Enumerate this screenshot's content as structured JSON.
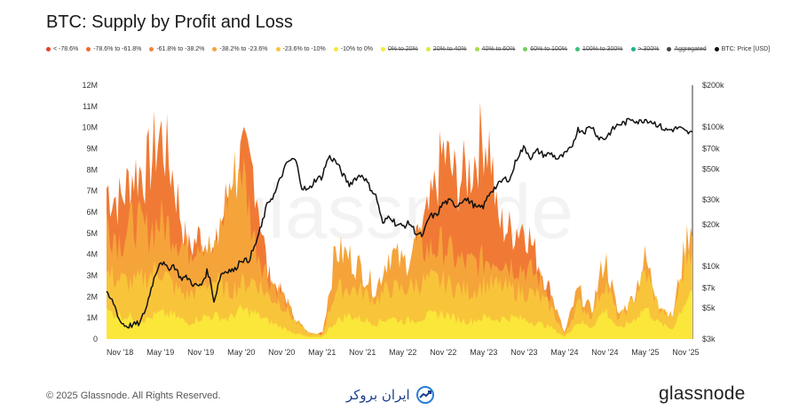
{
  "chart_data": {
    "type": "area",
    "title": "BTC: Supply by Profit and Loss",
    "watermark": "glassnode",
    "legend": [
      {
        "label": "< -78.6%",
        "color": "#e8402a",
        "strike": false
      },
      {
        "label": "-78.6% to -61.8%",
        "color": "#ee6a33",
        "strike": false
      },
      {
        "label": "-61.8% to -38.2%",
        "color": "#f2853a",
        "strike": false
      },
      {
        "label": "-38.2% to -23.6%",
        "color": "#f5a43a",
        "strike": false
      },
      {
        "label": "-23.6% to -10%",
        "color": "#f8c53a",
        "strike": false
      },
      {
        "label": "-10% to 0%",
        "color": "#fbe63a",
        "strike": false
      },
      {
        "label": "0% to 20%",
        "color": "#f2ec3c",
        "strike": true
      },
      {
        "label": "20% to 40%",
        "color": "#d8ea42",
        "strike": true
      },
      {
        "label": "40% to 60%",
        "color": "#a6dd48",
        "strike": true
      },
      {
        "label": "60% to 100%",
        "color": "#6fd05a",
        "strike": true
      },
      {
        "label": "100% to 300%",
        "color": "#3fc079",
        "strike": true
      },
      {
        "label": "> 300%",
        "color": "#20b08f",
        "strike": true
      },
      {
        "label": "Aggregated",
        "color": "#444444",
        "strike": true
      },
      {
        "label": "BTC: Price [USD]",
        "color": "#111111",
        "strike": false
      }
    ],
    "x_ticks": [
      "Nov '18",
      "May '19",
      "Nov '19",
      "May '20",
      "Nov '20",
      "May '21",
      "Nov '21",
      "May '22",
      "Nov '22",
      "May '23",
      "Nov '23",
      "May '24",
      "Nov '24",
      "May '25",
      "Nov '25"
    ],
    "y_left_ticks": [
      "0",
      "1M",
      "2M",
      "3M",
      "4M",
      "5M",
      "6M",
      "7M",
      "8M",
      "9M",
      "10M",
      "11M",
      "12M"
    ],
    "y_left_range": [
      0,
      12000000
    ],
    "y_right_ticks": [
      "$3k",
      "$5k",
      "$7k",
      "$10k",
      "$20k",
      "$30k",
      "$50k",
      "$70k",
      "$100k",
      "$200k"
    ],
    "y_right_tick_values": [
      3000,
      5000,
      7000,
      10000,
      20000,
      30000,
      50000,
      70000,
      100000,
      200000
    ],
    "y_right_range": [
      3000,
      200000
    ],
    "y_right_scale": "log",
    "x_range_months": [
      0,
      87
    ],
    "series": [
      {
        "name": "-61.8% to -38.2%",
        "color": "#f07a35",
        "points": [
          [
            0,
            7.7
          ],
          [
            2,
            7.0
          ],
          [
            4,
            8.5
          ],
          [
            6,
            8.6
          ],
          [
            8,
            10.5
          ],
          [
            10,
            8.2
          ],
          [
            12,
            4.5
          ],
          [
            14,
            5.3
          ],
          [
            16,
            4.2
          ],
          [
            18,
            7.4
          ],
          [
            20,
            9.0
          ],
          [
            22,
            8.5
          ],
          [
            24,
            3.2
          ],
          [
            26,
            2.3
          ],
          [
            28,
            0.8
          ],
          [
            30,
            0.3
          ],
          [
            40,
            0.3
          ],
          [
            42,
            0.4
          ],
          [
            44,
            1.0
          ],
          [
            46,
            4.8
          ],
          [
            48,
            6.5
          ],
          [
            50,
            9.5
          ],
          [
            52,
            8.0
          ],
          [
            54,
            8.6
          ],
          [
            56,
            10.5
          ],
          [
            57,
            9.8
          ],
          [
            58,
            6.0
          ],
          [
            60,
            5.5
          ],
          [
            62,
            5.9
          ],
          [
            64,
            4.0
          ],
          [
            66,
            2.3
          ],
          [
            68,
            0.2
          ],
          [
            87,
            0.2
          ]
        ]
      },
      {
        "name": "-38.2% to -23.6%",
        "color": "#f5a43a",
        "points": [
          [
            0,
            6.0
          ],
          [
            2,
            5.0
          ],
          [
            4,
            6.0
          ],
          [
            6,
            5.5
          ],
          [
            8,
            6.0
          ],
          [
            10,
            5.5
          ],
          [
            12,
            4.5
          ],
          [
            14,
            5.3
          ],
          [
            16,
            4.2
          ],
          [
            18,
            7.4
          ],
          [
            20,
            9.0
          ],
          [
            22,
            5.0
          ],
          [
            24,
            3.2
          ],
          [
            26,
            2.3
          ],
          [
            28,
            1.0
          ],
          [
            30,
            0.3
          ],
          [
            32,
            0.2
          ],
          [
            34,
            4.5
          ],
          [
            36,
            4.2
          ],
          [
            38,
            3.5
          ],
          [
            40,
            2.5
          ],
          [
            42,
            4.5
          ],
          [
            44,
            3.8
          ],
          [
            46,
            4.8
          ],
          [
            48,
            4.5
          ],
          [
            50,
            4.8
          ],
          [
            52,
            4.0
          ],
          [
            54,
            3.8
          ],
          [
            56,
            4.0
          ],
          [
            58,
            4.2
          ],
          [
            60,
            3.8
          ],
          [
            62,
            3.6
          ],
          [
            64,
            3.2
          ],
          [
            66,
            2.2
          ],
          [
            68,
            0.3
          ],
          [
            70,
            2.5
          ],
          [
            72,
            1.4
          ],
          [
            74,
            4.2
          ],
          [
            76,
            1.2
          ],
          [
            78,
            2.0
          ],
          [
            80,
            4.1
          ],
          [
            82,
            1.8
          ],
          [
            84,
            1.1
          ],
          [
            86,
            4.8
          ],
          [
            87,
            6.3
          ]
        ]
      },
      {
        "name": "-23.6% to -10%",
        "color": "#f8c53a",
        "points": [
          [
            0,
            3.3
          ],
          [
            2,
            3.0
          ],
          [
            4,
            2.8
          ],
          [
            6,
            3.2
          ],
          [
            8,
            3.6
          ],
          [
            10,
            2.6
          ],
          [
            12,
            2.2
          ],
          [
            14,
            2.6
          ],
          [
            16,
            3.0
          ],
          [
            18,
            2.4
          ],
          [
            20,
            2.8
          ],
          [
            22,
            3.0
          ],
          [
            24,
            2.2
          ],
          [
            26,
            1.8
          ],
          [
            28,
            0.9
          ],
          [
            30,
            0.3
          ],
          [
            32,
            0.2
          ],
          [
            34,
            2.5
          ],
          [
            36,
            2.6
          ],
          [
            38,
            2.4
          ],
          [
            40,
            2.0
          ],
          [
            42,
            2.6
          ],
          [
            44,
            2.5
          ],
          [
            46,
            2.8
          ],
          [
            48,
            3.0
          ],
          [
            50,
            2.9
          ],
          [
            52,
            2.6
          ],
          [
            54,
            2.4
          ],
          [
            56,
            2.8
          ],
          [
            58,
            2.7
          ],
          [
            60,
            2.5
          ],
          [
            62,
            2.4
          ],
          [
            64,
            2.2
          ],
          [
            66,
            1.6
          ],
          [
            68,
            0.2
          ],
          [
            70,
            1.8
          ],
          [
            72,
            1.2
          ],
          [
            74,
            3.0
          ],
          [
            76,
            1.0
          ],
          [
            78,
            1.8
          ],
          [
            80,
            3.4
          ],
          [
            82,
            1.6
          ],
          [
            84,
            1.0
          ],
          [
            86,
            4.0
          ],
          [
            87,
            5.2
          ]
        ]
      },
      {
        "name": "-10% to 0%",
        "color": "#fbe63a",
        "points": [
          [
            0,
            1.4
          ],
          [
            2,
            1.2
          ],
          [
            4,
            1.1
          ],
          [
            6,
            1.0
          ],
          [
            8,
            1.3
          ],
          [
            10,
            1.2
          ],
          [
            12,
            0.8
          ],
          [
            14,
            1.1
          ],
          [
            16,
            1.2
          ],
          [
            18,
            1.0
          ],
          [
            20,
            1.5
          ],
          [
            22,
            1.3
          ],
          [
            24,
            0.9
          ],
          [
            26,
            0.6
          ],
          [
            28,
            0.3
          ],
          [
            30,
            0.1
          ],
          [
            32,
            0.1
          ],
          [
            34,
            0.9
          ],
          [
            36,
            1.2
          ],
          [
            38,
            1.0
          ],
          [
            40,
            0.8
          ],
          [
            42,
            1.1
          ],
          [
            44,
            0.9
          ],
          [
            46,
            1.0
          ],
          [
            48,
            1.2
          ],
          [
            50,
            1.3
          ],
          [
            52,
            1.0
          ],
          [
            54,
            0.9
          ],
          [
            56,
            1.1
          ],
          [
            58,
            1.0
          ],
          [
            60,
            1.1
          ],
          [
            62,
            1.0
          ],
          [
            64,
            0.8
          ],
          [
            66,
            0.6
          ],
          [
            68,
            0.1
          ],
          [
            70,
            0.9
          ],
          [
            72,
            0.6
          ],
          [
            74,
            1.5
          ],
          [
            76,
            0.5
          ],
          [
            78,
            0.9
          ],
          [
            80,
            1.6
          ],
          [
            82,
            0.8
          ],
          [
            84,
            0.5
          ],
          [
            86,
            2.0
          ],
          [
            87,
            2.6
          ]
        ]
      }
    ],
    "price": {
      "name": "BTC: Price [USD]",
      "points": [
        [
          0,
          6300
        ],
        [
          1,
          5500
        ],
        [
          2,
          4000
        ],
        [
          3,
          3700
        ],
        [
          4,
          3800
        ],
        [
          5,
          3900
        ],
        [
          6,
          5200
        ],
        [
          7,
          8000
        ],
        [
          8,
          11000
        ],
        [
          9,
          9600
        ],
        [
          10,
          10200
        ],
        [
          11,
          8200
        ],
        [
          12,
          8300
        ],
        [
          13,
          7300
        ],
        [
          14,
          7200
        ],
        [
          15,
          9300
        ],
        [
          16,
          5500
        ],
        [
          17,
          8800
        ],
        [
          18,
          9400
        ],
        [
          19,
          9300
        ],
        [
          20,
          11300
        ],
        [
          21,
          10800
        ],
        [
          22,
          13700
        ],
        [
          23,
          19300
        ],
        [
          24,
          29000
        ],
        [
          25,
          33000
        ],
        [
          26,
          45000
        ],
        [
          27,
          57000
        ],
        [
          28,
          58700
        ],
        [
          29,
          37000
        ],
        [
          30,
          35000
        ],
        [
          31,
          42000
        ],
        [
          32,
          43800
        ],
        [
          33,
          61300
        ],
        [
          34,
          57000
        ],
        [
          35,
          46300
        ],
        [
          36,
          38500
        ],
        [
          37,
          43200
        ],
        [
          38,
          45500
        ],
        [
          39,
          37600
        ],
        [
          40,
          31800
        ],
        [
          41,
          19800
        ],
        [
          42,
          23300
        ],
        [
          43,
          20000
        ],
        [
          44,
          19400
        ],
        [
          45,
          20500
        ],
        [
          46,
          17200
        ],
        [
          47,
          16500
        ],
        [
          48,
          23100
        ],
        [
          49,
          23100
        ],
        [
          50,
          28500
        ],
        [
          51,
          29300
        ],
        [
          52,
          27200
        ],
        [
          53,
          30500
        ],
        [
          54,
          29200
        ],
        [
          55,
          26000
        ],
        [
          56,
          27000
        ],
        [
          57,
          34500
        ],
        [
          58,
          37700
        ],
        [
          59,
          42300
        ],
        [
          60,
          42600
        ],
        [
          61,
          61200
        ],
        [
          62,
          71300
        ],
        [
          63,
          60600
        ],
        [
          64,
          67500
        ],
        [
          65,
          62700
        ],
        [
          66,
          64600
        ],
        [
          67,
          58900
        ],
        [
          68,
          63300
        ],
        [
          69,
          70200
        ],
        [
          70,
          96400
        ],
        [
          71,
          93400
        ],
        [
          72,
          102400
        ],
        [
          73,
          84400
        ],
        [
          74,
          82500
        ],
        [
          75,
          94200
        ],
        [
          76,
          104600
        ],
        [
          77,
          107100
        ],
        [
          78,
          115700
        ],
        [
          79,
          108300
        ],
        [
          80,
          114000
        ],
        [
          81,
          109500
        ],
        [
          82,
          103000
        ],
        [
          83,
          95000
        ],
        [
          84,
          96000
        ],
        [
          85,
          99000
        ],
        [
          86,
          92000
        ],
        [
          87,
          90000
        ]
      ]
    }
  },
  "footer": {
    "copyright": "© 2025 Glassnode. All Rights Reserved.",
    "brand": "glassnode",
    "partner": "ایران بروکر"
  }
}
